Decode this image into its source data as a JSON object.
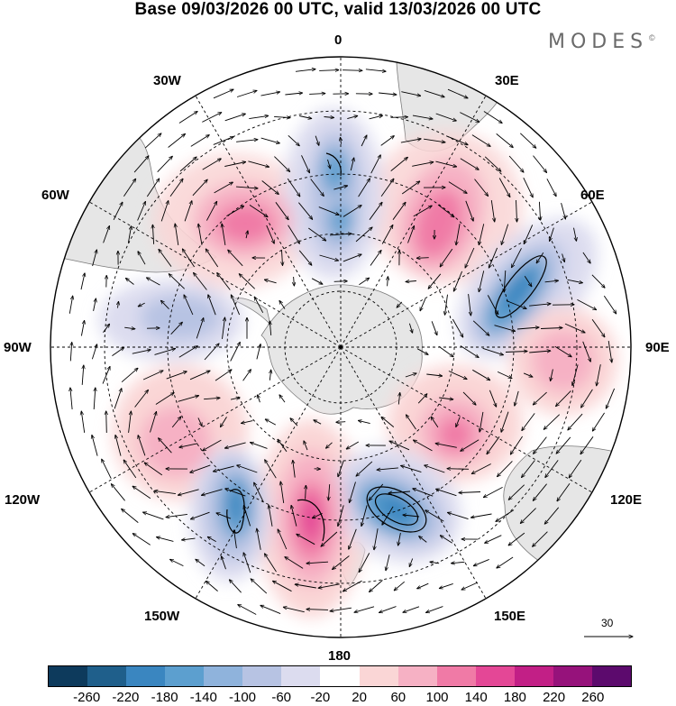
{
  "title": "Base 09/03/2026 00 UTC, valid 13/03/2026 00 UTC",
  "brand": {
    "name": "MODES",
    "mark": "©"
  },
  "map": {
    "projection": "south polar stereographic",
    "longitude_labels": {
      "top": "0",
      "top_right": "30E",
      "right_upper": "60E",
      "right": "90E",
      "right_lower": "120E",
      "bottom_right": "150E",
      "bottom": "180",
      "bottom_left": "150W",
      "left_lower": "120W",
      "left": "90W",
      "left_upper": "60W",
      "top_left": "30W"
    },
    "field": "anomaly (shaded) with wind vectors",
    "anomaly_centers": [
      {
        "sign": "positive",
        "near": "Weddell Sea / 40W",
        "max": 140
      },
      {
        "sign": "negative",
        "near": "5E",
        "min": -140
      },
      {
        "sign": "positive",
        "near": "30E",
        "max": 140
      },
      {
        "sign": "negative",
        "near": "60E",
        "min": -180
      },
      {
        "sign": "positive",
        "near": "95E",
        "max": 100
      },
      {
        "sign": "positive",
        "near": "110E",
        "max": 140
      },
      {
        "sign": "negative",
        "near": "155E",
        "min": -180
      },
      {
        "sign": "positive",
        "near": "170W",
        "max": 180
      },
      {
        "sign": "negative",
        "near": "140W",
        "min": -180
      },
      {
        "sign": "positive",
        "near": "110W",
        "max": 100
      },
      {
        "sign": "negative",
        "near": "75W",
        "min": -100
      }
    ]
  },
  "vector_reference": {
    "label": "30"
  },
  "colorbar": {
    "ticks": [
      "-260",
      "-220",
      "-180",
      "-140",
      "-100",
      "-60",
      "-20",
      "20",
      "60",
      "100",
      "140",
      "180",
      "220",
      "260"
    ],
    "colors": [
      "#0d3a5c",
      "#1f5f8b",
      "#3a86c0",
      "#5c9fcf",
      "#8fb3dc",
      "#b7c3e3",
      "#dcdcef",
      "#ffffff",
      "#fad6d6",
      "#f6b1c4",
      "#f07aa6",
      "#e44796",
      "#c21f86",
      "#96127b",
      "#5c0a6d"
    ]
  }
}
